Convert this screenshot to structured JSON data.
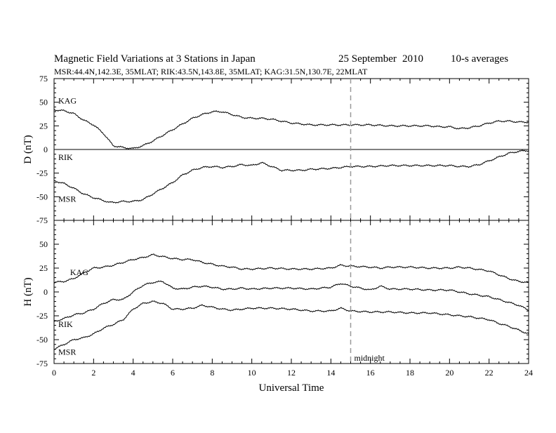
{
  "header": {
    "title": "Magnetic Field Variations at 3 Stations in Japan",
    "date": "25 September",
    "year": "2010",
    "averaging": "10-s averages",
    "stations_line": "MSR:44.4N,142.3E, 35MLAT;  RIK:43.5N,143.8E, 35MLAT;  KAG:31.5N,130.7E, 22MLAT"
  },
  "chart_data": [
    {
      "type": "line",
      "ylabel": "D (nT)",
      "ylim": [
        -75,
        75
      ],
      "yticks": [
        "75",
        "50",
        "25",
        "0",
        "-25",
        "-50",
        "-75"
      ],
      "xlim": [
        0,
        24
      ],
      "zero_line": true,
      "series": [
        {
          "name": "KAG",
          "x": [
            0,
            0.5,
            1,
            1.5,
            2,
            2.5,
            2.8,
            3,
            3.5,
            4,
            4.5,
            5,
            5.5,
            6,
            6.5,
            7,
            7.5,
            8,
            8.5,
            9,
            9.5,
            10,
            10.5,
            11,
            11.5,
            12,
            12.5,
            13,
            14,
            15,
            16,
            17,
            18,
            19,
            19.5,
            20,
            20.5,
            21,
            21.5,
            22,
            22.5,
            23,
            23.5,
            24
          ],
          "values": [
            42,
            41,
            38,
            31,
            26,
            17,
            9,
            4,
            2,
            1,
            4,
            9,
            15,
            21,
            27,
            33,
            37,
            40,
            40,
            37,
            34,
            33,
            33,
            32,
            30,
            28,
            27,
            26,
            26,
            26,
            26,
            25,
            25,
            25,
            24,
            24,
            22,
            23,
            25,
            28,
            30,
            30,
            29,
            29
          ]
        },
        {
          "name": "RIK",
          "x": [
            0,
            24
          ],
          "values": [
            0,
            0
          ]
        },
        {
          "name": "MSR",
          "x": [
            0,
            0.5,
            1,
            1.5,
            2,
            2.5,
            2.8,
            3,
            3.5,
            4,
            4.5,
            5,
            5.5,
            6,
            6.5,
            7,
            7.5,
            8,
            8.5,
            9,
            9.5,
            10,
            10.5,
            11,
            11.5,
            12,
            12.5,
            13,
            14,
            15,
            15.5,
            16,
            17,
            18,
            19,
            20,
            20.5,
            21,
            21.5,
            22,
            22.5,
            23,
            23.5,
            24
          ],
          "values": [
            -33,
            -36,
            -41,
            -47,
            -51,
            -54,
            -56,
            -56,
            -55,
            -55,
            -53,
            -47,
            -41,
            -35,
            -27,
            -22,
            -19,
            -18,
            -19,
            -18,
            -16,
            -17,
            -14,
            -18,
            -22,
            -22,
            -22,
            -21,
            -20,
            -18,
            -18,
            -18,
            -17,
            -17,
            -17,
            -17,
            -18,
            -18,
            -16,
            -12,
            -8,
            -4,
            -2,
            -1
          ]
        }
      ],
      "labels": [
        "KAG",
        "RIK",
        "MSR"
      ]
    },
    {
      "type": "line",
      "ylabel": "H (nT)",
      "ylim": [
        -75,
        75
      ],
      "yticks": [
        "50",
        "25",
        "0",
        "-25",
        "-50",
        "-75"
      ],
      "xlim": [
        0,
        24
      ],
      "xticks": [
        "0",
        "2",
        "4",
        "6",
        "8",
        "10",
        "12",
        "14",
        "16",
        "18",
        "20",
        "22",
        "24"
      ],
      "xlabel": "Universal Time",
      "marker_line": {
        "x": 15,
        "label": "midnight"
      },
      "series": [
        {
          "name": "KAG",
          "x": [
            0,
            0.5,
            1,
            1.5,
            2,
            2.5,
            3,
            3.5,
            4,
            4.5,
            5,
            5.5,
            6,
            6.5,
            7,
            7.5,
            8,
            8.5,
            9,
            9.5,
            10,
            11,
            12,
            13,
            14,
            14.5,
            15,
            16,
            16.5,
            17,
            18,
            19,
            20,
            20.5,
            21,
            22,
            22.5,
            23,
            23.5,
            24
          ],
          "values": [
            10,
            11,
            14,
            20,
            25,
            26,
            28,
            31,
            34,
            36,
            39,
            37,
            35,
            34,
            34,
            31,
            29,
            27,
            26,
            24,
            24,
            25,
            24,
            24,
            25,
            28,
            27,
            26,
            25,
            26,
            26,
            25,
            25,
            26,
            25,
            22,
            18,
            14,
            11,
            10
          ]
        },
        {
          "name": "RIK",
          "x": [
            0,
            0.5,
            1,
            1.5,
            2,
            2.5,
            3,
            3.5,
            4,
            4.5,
            5,
            5.5,
            6,
            6.5,
            7,
            7.5,
            8,
            8.5,
            9,
            9.5,
            10,
            11,
            12,
            13,
            14,
            14.5,
            15,
            16,
            16.5,
            17,
            18,
            19,
            20,
            20.5,
            21,
            22,
            22.5,
            23,
            23.5,
            24
          ],
          "values": [
            -31,
            -28,
            -24,
            -22,
            -18,
            -12,
            -8,
            -8,
            0,
            7,
            10,
            11,
            4,
            3,
            5,
            6,
            5,
            3,
            3,
            4,
            3,
            4,
            4,
            3,
            5,
            9,
            6,
            2,
            6,
            3,
            3,
            2,
            2,
            0,
            -2,
            -5,
            -8,
            -11,
            -14,
            -19
          ]
        },
        {
          "name": "MSR",
          "x": [
            0,
            0.5,
            1,
            1.5,
            2,
            2.5,
            3,
            3.5,
            4,
            4.5,
            5,
            5.5,
            6,
            6.5,
            7,
            7.5,
            8,
            8.5,
            9,
            9.5,
            10,
            11,
            12,
            13,
            14,
            14.5,
            15,
            16,
            16.5,
            17,
            18,
            19,
            20,
            20.5,
            21,
            22,
            22.5,
            23,
            23.5,
            24
          ],
          "values": [
            -60,
            -55,
            -50,
            -48,
            -44,
            -38,
            -34,
            -29,
            -18,
            -12,
            -10,
            -12,
            -18,
            -18,
            -17,
            -14,
            -16,
            -18,
            -19,
            -18,
            -17,
            -17,
            -18,
            -20,
            -20,
            -17,
            -20,
            -21,
            -21,
            -21,
            -22,
            -22,
            -24,
            -25,
            -26,
            -29,
            -33,
            -36,
            -40,
            -44
          ]
        }
      ],
      "labels": [
        "KAG",
        "RIK",
        "MSR"
      ]
    }
  ]
}
